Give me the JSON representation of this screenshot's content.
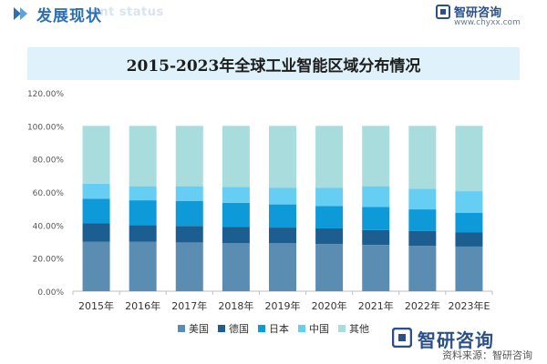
{
  "header": {
    "title": "发展现状",
    "subtitle_watermark": "ent status",
    "brand_name": "智研咨询",
    "brand_url": "www.chyxx.com",
    "accent": "#2d6fb5"
  },
  "footer": {
    "brand_name": "智研咨询",
    "source": "资料来源：智研咨询"
  },
  "chart_data": {
    "type": "bar",
    "stacked": true,
    "title": "2015-2023年全球工业智能区域分布情况",
    "categories": [
      "2015年",
      "2016年",
      "2017年",
      "2018年",
      "2019年",
      "2020年",
      "2021年",
      "2022年",
      "2023年E"
    ],
    "yticks": [
      "0.00%",
      "20.00%",
      "40.00%",
      "60.00%",
      "80.00%",
      "100.00%",
      "120.00%"
    ],
    "ylim": [
      0,
      120
    ],
    "grid": false,
    "legend_position": "bottom",
    "series": [
      {
        "name": "美国",
        "color": "#5b8db2",
        "values": [
          30,
          30,
          29.5,
          29,
          29,
          28.5,
          28,
          27.5,
          27
        ]
      },
      {
        "name": "德国",
        "color": "#1b5e8f",
        "values": [
          11,
          10,
          10,
          10,
          9.5,
          9.5,
          9,
          9,
          8.5
        ]
      },
      {
        "name": "日本",
        "color": "#0e9ad8",
        "values": [
          15,
          15,
          15,
          14.5,
          14,
          13.5,
          14,
          13,
          12
        ]
      },
      {
        "name": "中国",
        "color": "#66cef2",
        "values": [
          9,
          8.5,
          9,
          9.5,
          10,
          11,
          12.5,
          12.5,
          13
        ]
      },
      {
        "name": "其他",
        "color": "#a9dcdc",
        "values": [
          35,
          36.5,
          36.5,
          37,
          37.5,
          37.5,
          36.5,
          38,
          39.5
        ]
      }
    ]
  }
}
